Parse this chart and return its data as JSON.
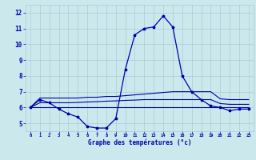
{
  "hours": [
    0,
    1,
    2,
    3,
    4,
    5,
    6,
    7,
    8,
    9,
    10,
    11,
    12,
    13,
    14,
    15,
    16,
    17,
    18,
    19,
    20,
    21,
    22,
    23
  ],
  "temp_main": [
    6.0,
    6.5,
    6.3,
    5.9,
    5.6,
    5.4,
    4.8,
    4.7,
    4.7,
    5.3,
    8.4,
    10.6,
    11.0,
    11.1,
    11.8,
    11.1,
    8.0,
    7.0,
    6.5,
    6.1,
    6.0,
    5.8,
    5.9,
    5.9
  ],
  "temp_upper": [
    6.0,
    6.6,
    6.6,
    6.6,
    6.6,
    6.6,
    6.65,
    6.65,
    6.7,
    6.7,
    6.75,
    6.8,
    6.85,
    6.9,
    6.95,
    7.0,
    7.0,
    7.0,
    7.0,
    7.0,
    6.55,
    6.5,
    6.5,
    6.5
  ],
  "temp_mid": [
    6.0,
    6.3,
    6.3,
    6.3,
    6.3,
    6.32,
    6.35,
    6.37,
    6.4,
    6.42,
    6.45,
    6.47,
    6.5,
    6.5,
    6.5,
    6.5,
    6.5,
    6.5,
    6.5,
    6.5,
    6.25,
    6.2,
    6.2,
    6.2
  ],
  "temp_lower": [
    6.0,
    6.0,
    6.0,
    6.0,
    6.0,
    6.0,
    6.0,
    6.0,
    6.0,
    6.0,
    6.0,
    6.0,
    6.0,
    6.0,
    6.0,
    6.0,
    6.0,
    6.0,
    6.0,
    6.0,
    6.0,
    6.0,
    6.0,
    6.0
  ],
  "line_color": "#0000AA",
  "bg_color": "#CBE8ED",
  "grid_color": "#A8CDD4",
  "xlabel": "Graphe des températures (°c)",
  "ylim": [
    4.5,
    12.5
  ],
  "xlim": [
    -0.5,
    23.5
  ],
  "yticks": [
    5,
    6,
    7,
    8,
    9,
    10,
    11,
    12
  ],
  "xtick_labels": [
    "0",
    "1",
    "2",
    "3",
    "4",
    "5",
    "6",
    "7",
    "8",
    "9",
    "10",
    "11",
    "12",
    "13",
    "14",
    "15",
    "16",
    "17",
    "18",
    "19",
    "20",
    "21",
    "22",
    "23"
  ]
}
